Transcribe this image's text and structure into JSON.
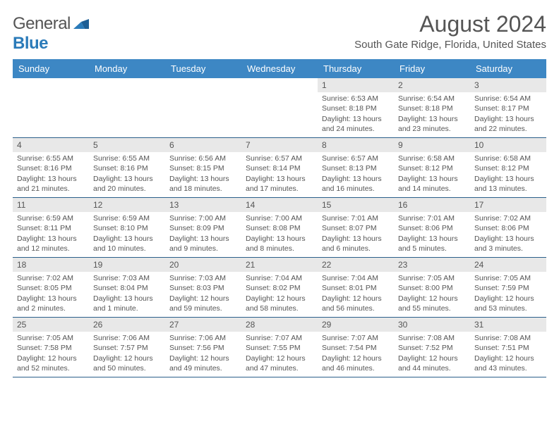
{
  "logo": {
    "part1": "General",
    "part2": "Blue"
  },
  "title": "August 2024",
  "location": "South Gate Ridge, Florida, United States",
  "colors": {
    "header_bg": "#3d87c4",
    "header_text": "#ffffff",
    "daynum_bg": "#e8e8e8",
    "week_border": "#2b5f8a",
    "text": "#555555"
  },
  "dayNames": [
    "Sunday",
    "Monday",
    "Tuesday",
    "Wednesday",
    "Thursday",
    "Friday",
    "Saturday"
  ],
  "weeks": [
    [
      {
        "n": "",
        "sr": "",
        "ss": "",
        "dl": ""
      },
      {
        "n": "",
        "sr": "",
        "ss": "",
        "dl": ""
      },
      {
        "n": "",
        "sr": "",
        "ss": "",
        "dl": ""
      },
      {
        "n": "",
        "sr": "",
        "ss": "",
        "dl": ""
      },
      {
        "n": "1",
        "sr": "Sunrise: 6:53 AM",
        "ss": "Sunset: 8:18 PM",
        "dl": "Daylight: 13 hours and 24 minutes."
      },
      {
        "n": "2",
        "sr": "Sunrise: 6:54 AM",
        "ss": "Sunset: 8:18 PM",
        "dl": "Daylight: 13 hours and 23 minutes."
      },
      {
        "n": "3",
        "sr": "Sunrise: 6:54 AM",
        "ss": "Sunset: 8:17 PM",
        "dl": "Daylight: 13 hours and 22 minutes."
      }
    ],
    [
      {
        "n": "4",
        "sr": "Sunrise: 6:55 AM",
        "ss": "Sunset: 8:16 PM",
        "dl": "Daylight: 13 hours and 21 minutes."
      },
      {
        "n": "5",
        "sr": "Sunrise: 6:55 AM",
        "ss": "Sunset: 8:16 PM",
        "dl": "Daylight: 13 hours and 20 minutes."
      },
      {
        "n": "6",
        "sr": "Sunrise: 6:56 AM",
        "ss": "Sunset: 8:15 PM",
        "dl": "Daylight: 13 hours and 18 minutes."
      },
      {
        "n": "7",
        "sr": "Sunrise: 6:57 AM",
        "ss": "Sunset: 8:14 PM",
        "dl": "Daylight: 13 hours and 17 minutes."
      },
      {
        "n": "8",
        "sr": "Sunrise: 6:57 AM",
        "ss": "Sunset: 8:13 PM",
        "dl": "Daylight: 13 hours and 16 minutes."
      },
      {
        "n": "9",
        "sr": "Sunrise: 6:58 AM",
        "ss": "Sunset: 8:12 PM",
        "dl": "Daylight: 13 hours and 14 minutes."
      },
      {
        "n": "10",
        "sr": "Sunrise: 6:58 AM",
        "ss": "Sunset: 8:12 PM",
        "dl": "Daylight: 13 hours and 13 minutes."
      }
    ],
    [
      {
        "n": "11",
        "sr": "Sunrise: 6:59 AM",
        "ss": "Sunset: 8:11 PM",
        "dl": "Daylight: 13 hours and 12 minutes."
      },
      {
        "n": "12",
        "sr": "Sunrise: 6:59 AM",
        "ss": "Sunset: 8:10 PM",
        "dl": "Daylight: 13 hours and 10 minutes."
      },
      {
        "n": "13",
        "sr": "Sunrise: 7:00 AM",
        "ss": "Sunset: 8:09 PM",
        "dl": "Daylight: 13 hours and 9 minutes."
      },
      {
        "n": "14",
        "sr": "Sunrise: 7:00 AM",
        "ss": "Sunset: 8:08 PM",
        "dl": "Daylight: 13 hours and 8 minutes."
      },
      {
        "n": "15",
        "sr": "Sunrise: 7:01 AM",
        "ss": "Sunset: 8:07 PM",
        "dl": "Daylight: 13 hours and 6 minutes."
      },
      {
        "n": "16",
        "sr": "Sunrise: 7:01 AM",
        "ss": "Sunset: 8:06 PM",
        "dl": "Daylight: 13 hours and 5 minutes."
      },
      {
        "n": "17",
        "sr": "Sunrise: 7:02 AM",
        "ss": "Sunset: 8:06 PM",
        "dl": "Daylight: 13 hours and 3 minutes."
      }
    ],
    [
      {
        "n": "18",
        "sr": "Sunrise: 7:02 AM",
        "ss": "Sunset: 8:05 PM",
        "dl": "Daylight: 13 hours and 2 minutes."
      },
      {
        "n": "19",
        "sr": "Sunrise: 7:03 AM",
        "ss": "Sunset: 8:04 PM",
        "dl": "Daylight: 13 hours and 1 minute."
      },
      {
        "n": "20",
        "sr": "Sunrise: 7:03 AM",
        "ss": "Sunset: 8:03 PM",
        "dl": "Daylight: 12 hours and 59 minutes."
      },
      {
        "n": "21",
        "sr": "Sunrise: 7:04 AM",
        "ss": "Sunset: 8:02 PM",
        "dl": "Daylight: 12 hours and 58 minutes."
      },
      {
        "n": "22",
        "sr": "Sunrise: 7:04 AM",
        "ss": "Sunset: 8:01 PM",
        "dl": "Daylight: 12 hours and 56 minutes."
      },
      {
        "n": "23",
        "sr": "Sunrise: 7:05 AM",
        "ss": "Sunset: 8:00 PM",
        "dl": "Daylight: 12 hours and 55 minutes."
      },
      {
        "n": "24",
        "sr": "Sunrise: 7:05 AM",
        "ss": "Sunset: 7:59 PM",
        "dl": "Daylight: 12 hours and 53 minutes."
      }
    ],
    [
      {
        "n": "25",
        "sr": "Sunrise: 7:05 AM",
        "ss": "Sunset: 7:58 PM",
        "dl": "Daylight: 12 hours and 52 minutes."
      },
      {
        "n": "26",
        "sr": "Sunrise: 7:06 AM",
        "ss": "Sunset: 7:57 PM",
        "dl": "Daylight: 12 hours and 50 minutes."
      },
      {
        "n": "27",
        "sr": "Sunrise: 7:06 AM",
        "ss": "Sunset: 7:56 PM",
        "dl": "Daylight: 12 hours and 49 minutes."
      },
      {
        "n": "28",
        "sr": "Sunrise: 7:07 AM",
        "ss": "Sunset: 7:55 PM",
        "dl": "Daylight: 12 hours and 47 minutes."
      },
      {
        "n": "29",
        "sr": "Sunrise: 7:07 AM",
        "ss": "Sunset: 7:54 PM",
        "dl": "Daylight: 12 hours and 46 minutes."
      },
      {
        "n": "30",
        "sr": "Sunrise: 7:08 AM",
        "ss": "Sunset: 7:52 PM",
        "dl": "Daylight: 12 hours and 44 minutes."
      },
      {
        "n": "31",
        "sr": "Sunrise: 7:08 AM",
        "ss": "Sunset: 7:51 PM",
        "dl": "Daylight: 12 hours and 43 minutes."
      }
    ]
  ]
}
